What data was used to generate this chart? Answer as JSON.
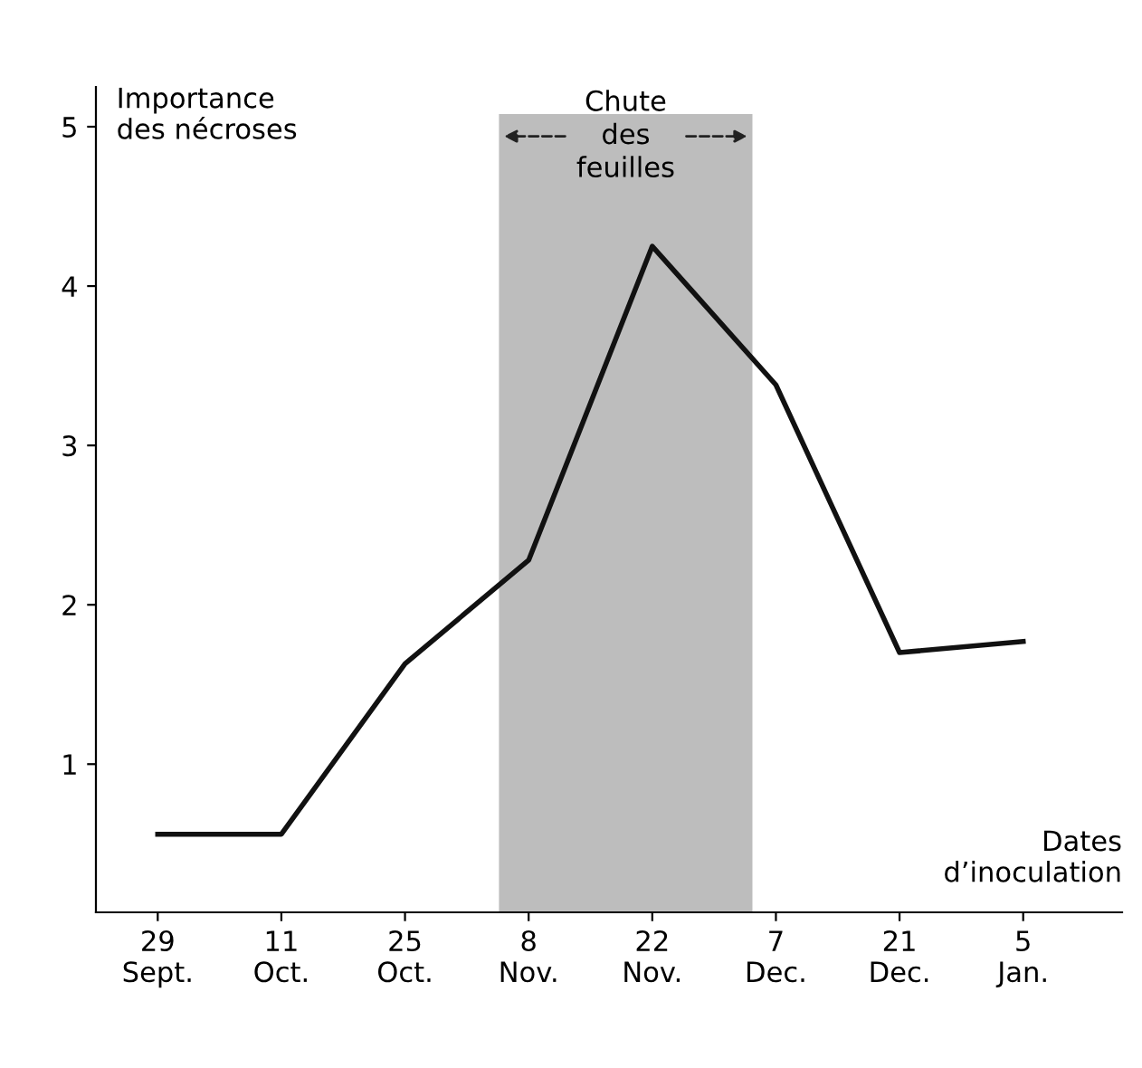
{
  "chart_data": {
    "type": "line",
    "xlabel": "Dates\nd’inoculation",
    "ylabel": "Importance\ndes nécroses",
    "categories": [
      "29\nSept.",
      "11\nOct.",
      "25\nOct.",
      "8\nNov.",
      "22\nNov.",
      "7\nDec.",
      "21\nDec.",
      "5\nJan."
    ],
    "series": [
      {
        "color": "#111111",
        "values": [
          0.56,
          0.56,
          1.63,
          2.28,
          4.25,
          3.38,
          1.7,
          1.77
        ]
      }
    ],
    "ylim": [
      0.07,
      5.25
    ],
    "yticks": [
      1,
      2,
      3,
      4,
      5
    ],
    "annotations": [
      "Chute\ndes\nfeuilles"
    ],
    "grid": false,
    "legend": false,
    "marker": "none",
    "line_style": "solid"
  }
}
